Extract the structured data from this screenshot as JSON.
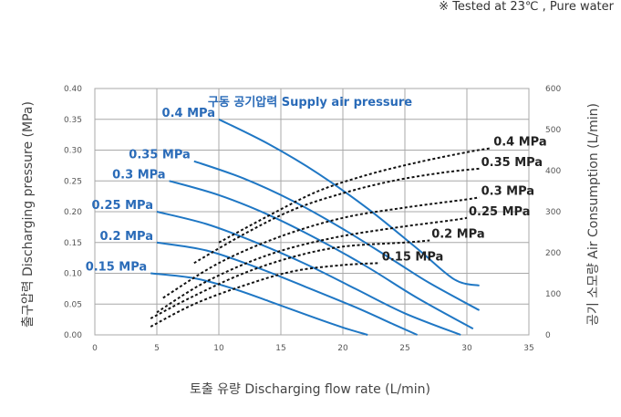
{
  "note": "※ Tested at 23℃ , Pure water",
  "chart_data": {
    "type": "line",
    "title": "",
    "legend_title": "구동 공기압력 Supply air pressure",
    "xlabel": "토출 유량 Discharging flow rate (L/min)",
    "ylabel": "출구압력 Discharging pressure (MPa)",
    "y2label": "공기 소모량 Air Consumption (L/min)",
    "xlim": [
      0,
      35
    ],
    "ylim": [
      0,
      0.4
    ],
    "y2lim": [
      0,
      600
    ],
    "xticks": [
      "0",
      "5",
      "10",
      "15",
      "20",
      "25",
      "30",
      "35"
    ],
    "yticks": [
      "0.00",
      "0.05",
      "0.10",
      "0.15",
      "0.20",
      "0.25",
      "0.30",
      "0.35",
      "0.40"
    ],
    "y2ticks": [
      "0",
      "100",
      "200",
      "300",
      "400",
      "500",
      "600"
    ],
    "grid": true,
    "colors": {
      "pressure": "#1f77c4",
      "pressure_label": "#2a6bb8",
      "air": "#111111",
      "grid": "#a8a8a8"
    },
    "pressure_series": [
      {
        "name": "0.4 MPa",
        "x": [
          10,
          14,
          18,
          22,
          26,
          29,
          31
        ],
        "y": [
          0.35,
          0.31,
          0.262,
          0.205,
          0.14,
          0.09,
          0.08
        ]
      },
      {
        "name": "0.35 MPa",
        "x": [
          8,
          12,
          16,
          20,
          24,
          27,
          31
        ],
        "y": [
          0.282,
          0.254,
          0.217,
          0.172,
          0.122,
          0.084,
          0.04
        ]
      },
      {
        "name": "0.3 MPa",
        "x": [
          6,
          10,
          14,
          18,
          22,
          26,
          30.5
        ],
        "y": [
          0.25,
          0.227,
          0.195,
          0.155,
          0.11,
          0.06,
          0.01
        ]
      },
      {
        "name": "0.25 MPa",
        "x": [
          5,
          9,
          13,
          17,
          21,
          25,
          29.5
        ],
        "y": [
          0.2,
          0.18,
          0.15,
          0.115,
          0.075,
          0.035,
          0
        ]
      },
      {
        "name": "0.2 MPa",
        "x": [
          5,
          9,
          13,
          17,
          21,
          24,
          26
        ],
        "y": [
          0.15,
          0.137,
          0.11,
          0.078,
          0.045,
          0.018,
          0
        ]
      },
      {
        "name": "0.15 MPa",
        "x": [
          4.5,
          8,
          11,
          14,
          17,
          20,
          22
        ],
        "y": [
          0.1,
          0.092,
          0.076,
          0.055,
          0.033,
          0.012,
          0
        ]
      }
    ],
    "air_series": [
      {
        "name": "0.4 MPa",
        "x": [
          10,
          14,
          18,
          22,
          26,
          30,
          32
        ],
        "y2": [
          225,
          290,
          350,
          390,
          420,
          445,
          455
        ]
      },
      {
        "name": "0.35 MPa",
        "x": [
          8,
          12,
          16,
          20,
          24,
          28,
          31
        ],
        "y2": [
          175,
          245,
          305,
          345,
          375,
          395,
          405
        ]
      },
      {
        "name": "0.3 MPa",
        "x": [
          5.5,
          10,
          15,
          20,
          25,
          30,
          31
        ],
        "y2": [
          90,
          175,
          240,
          285,
          310,
          330,
          335
        ]
      },
      {
        "name": "0.25 MPa",
        "x": [
          5,
          9,
          14,
          19,
          24,
          29,
          30
        ],
        "y2": [
          55,
          130,
          195,
          235,
          260,
          280,
          285
        ]
      },
      {
        "name": "0.2 MPa",
        "x": [
          4.5,
          8,
          12,
          16,
          20,
          25,
          27
        ],
        "y2": [
          40,
          95,
          150,
          190,
          215,
          225,
          230
        ]
      },
      {
        "name": "0.15 MPa",
        "x": [
          4.5,
          8,
          12,
          16,
          20,
          23
        ],
        "y2": [
          20,
          75,
          120,
          155,
          170,
          175
        ]
      }
    ]
  }
}
